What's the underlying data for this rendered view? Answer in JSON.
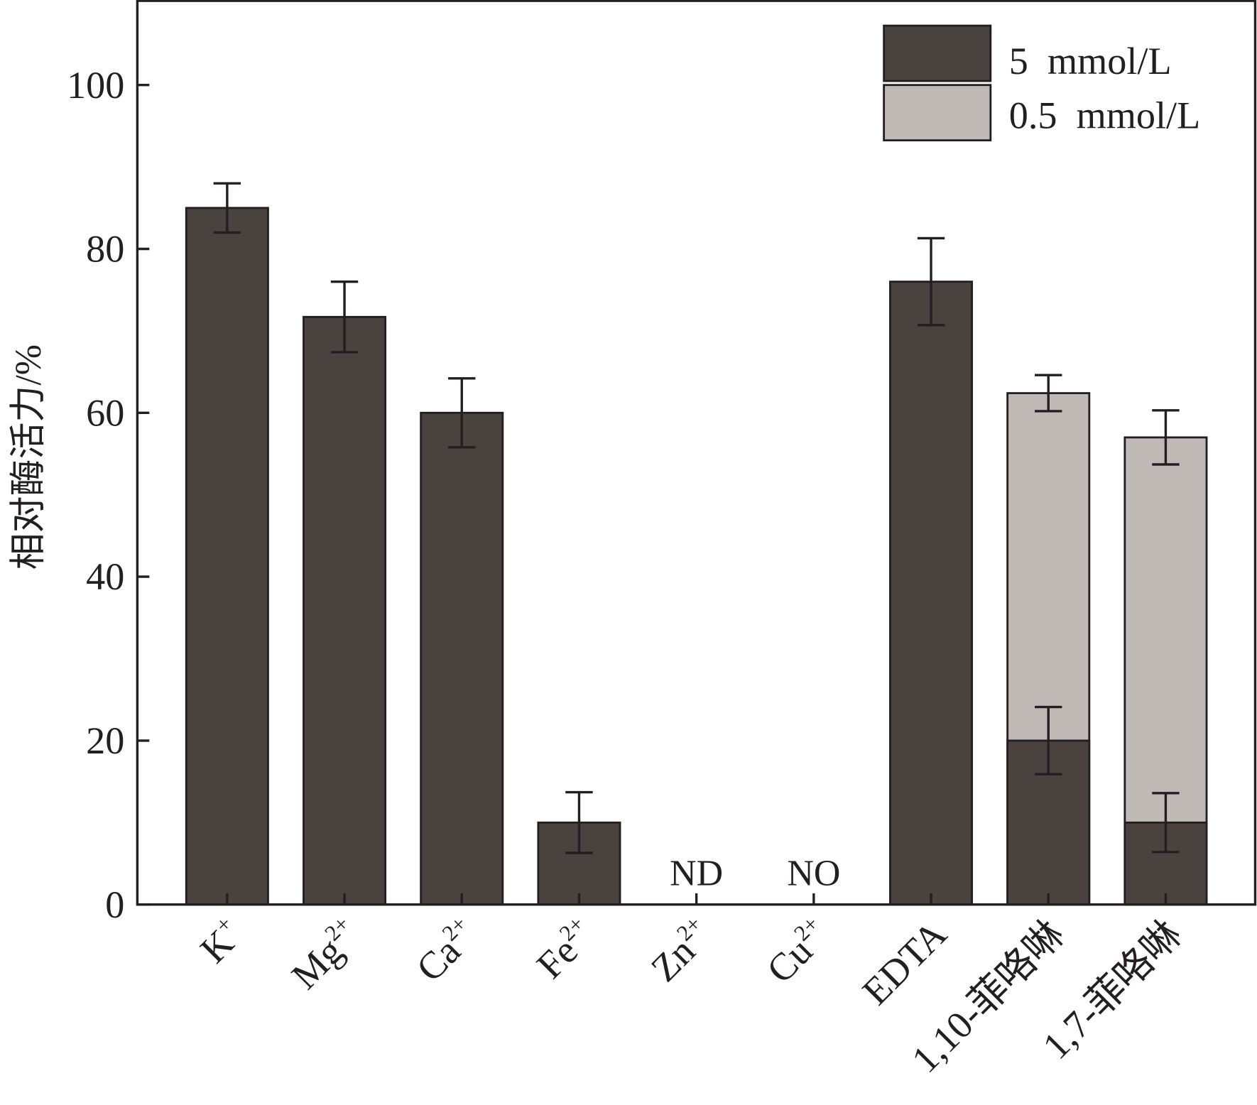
{
  "chart_data": {
    "type": "bar",
    "title": "",
    "xlabel": "",
    "ylabel": "相对酶活力/%",
    "ylim": [
      0,
      110
    ],
    "yticks": [
      0,
      20,
      40,
      60,
      80,
      100
    ],
    "grid": false,
    "legend_position": "top-right",
    "categories": [
      {
        "base": "K",
        "sup": "+"
      },
      {
        "base": "Mg",
        "sup": "2+"
      },
      {
        "base": "Ca",
        "sup": "2+"
      },
      {
        "base": "Fe",
        "sup": "2+"
      },
      {
        "base": "Zn",
        "sup": "2+"
      },
      {
        "base": "Cu",
        "sup": "2+"
      },
      {
        "base": "EDTA",
        "sup": ""
      },
      {
        "base": "1,10-菲咯啉",
        "sup": ""
      },
      {
        "base": "1,7-菲咯啉",
        "sup": ""
      }
    ],
    "series": [
      {
        "name": "5  mmol/L",
        "color": "#4a423e",
        "values": [
          85,
          71.7,
          60,
          10,
          null,
          null,
          76,
          20,
          10
        ],
        "errors": [
          3,
          4.3,
          4.2,
          3.7,
          null,
          null,
          5.3,
          4.1,
          3.6
        ]
      },
      {
        "name": "0.5  mmol/L",
        "color": "#c0bab6",
        "values": [
          null,
          null,
          null,
          null,
          null,
          null,
          null,
          62.4,
          57
        ],
        "errors": [
          null,
          null,
          null,
          null,
          null,
          null,
          null,
          2.2,
          3.3
        ]
      }
    ],
    "annotations": [
      {
        "category_index": 4,
        "text": "ND"
      },
      {
        "category_index": 5,
        "text": "NO"
      }
    ]
  }
}
